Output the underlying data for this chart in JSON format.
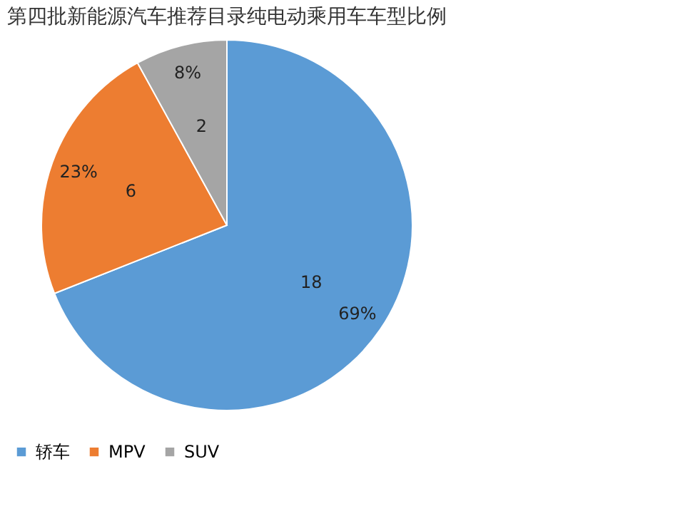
{
  "chart_data": {
    "type": "pie",
    "title": "第四批新能源汽车推荐目录纯电动乘用车车型比例",
    "categories": [
      "轿车",
      "MPV",
      "SUV"
    ],
    "values": [
      69,
      23,
      8
    ],
    "value_labels": [
      "69%",
      "23%",
      "8%"
    ],
    "annotations": [
      {
        "text": "18",
        "x": "轿车"
      },
      {
        "text": "6",
        "x": "MPV"
      },
      {
        "text": "2",
        "x": "SUV"
      }
    ],
    "colors": [
      "#5b9bd5",
      "#ed7d31",
      "#a5a5a5"
    ],
    "legend": "bottom"
  }
}
